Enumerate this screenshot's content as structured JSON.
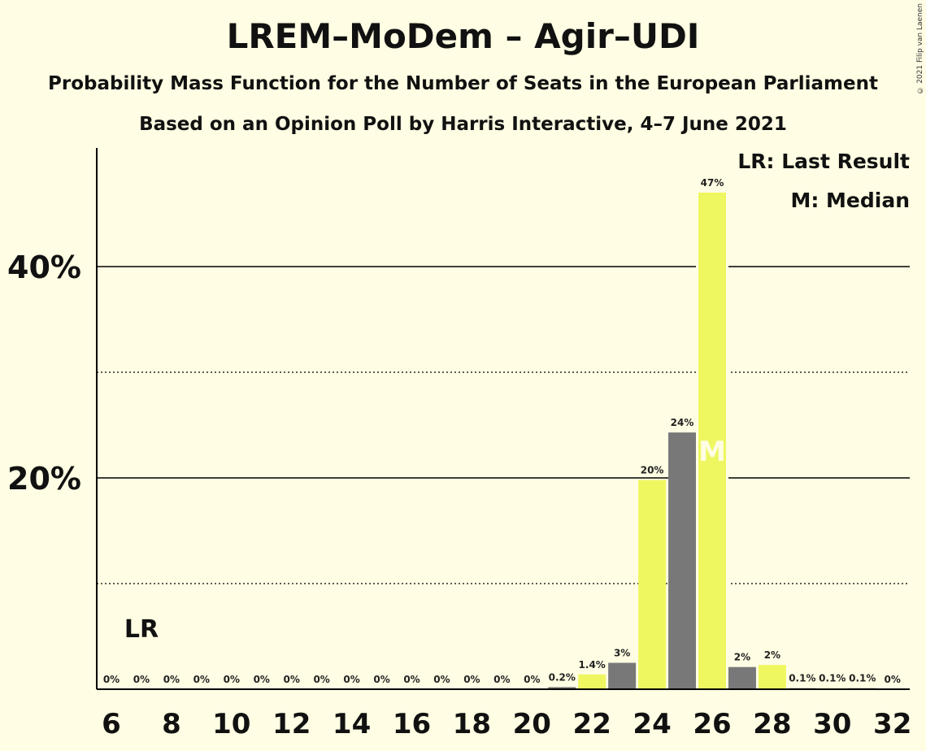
{
  "header": {
    "title": "LREM–MoDem – Agir–UDI",
    "subtitle_line1": "Probability Mass Function for the Number of Seats in the European Parliament",
    "subtitle_line2": "Based on an Opinion Poll by Harris Interactive, 4–7 June 2021",
    "copyright": "© 2021 Filip van Laenen"
  },
  "legend": {
    "last_result": "LR: Last Result",
    "median": "M: Median"
  },
  "colors": {
    "background": "#FFFDE3",
    "bar_yellow": "#EEF760",
    "bar_grey": "#787878",
    "axis": "#000000",
    "median_letter": "#FFFDE3"
  },
  "chart_data": {
    "type": "bar",
    "title": "LREM–MoDem – Agir–UDI",
    "xlabel": "",
    "ylabel": "",
    "x": [
      6,
      7,
      8,
      9,
      10,
      11,
      12,
      13,
      14,
      15,
      16,
      17,
      18,
      19,
      20,
      21,
      22,
      23,
      24,
      25,
      26,
      27,
      28,
      29,
      30,
      31,
      32
    ],
    "values": [
      0,
      0,
      0,
      0,
      0,
      0,
      0,
      0,
      0,
      0,
      0,
      0,
      0,
      0,
      0,
      0.2,
      1.4,
      2.5,
      19.8,
      24.3,
      47,
      2.1,
      2.3,
      0.1,
      0.1,
      0.1,
      0
    ],
    "labels": [
      "0%",
      "0%",
      "0%",
      "0%",
      "0%",
      "0%",
      "0%",
      "0%",
      "0%",
      "0%",
      "0%",
      "0%",
      "0%",
      "0%",
      "0%",
      "0.2%",
      "1.4%",
      "3%",
      "20%",
      "24%",
      "47%",
      "2%",
      "2%",
      "0.1%",
      "0.1%",
      "0.1%",
      "0%"
    ],
    "xticks": [
      "6",
      "8",
      "10",
      "12",
      "14",
      "16",
      "18",
      "20",
      "22",
      "24",
      "26",
      "28",
      "30",
      "32"
    ],
    "ylim": [
      0,
      50
    ],
    "yticks_labeled": [
      {
        "value": 20,
        "label": "20%"
      },
      {
        "value": 40,
        "label": "40%"
      }
    ],
    "gridlines_dotted": [
      10,
      30
    ],
    "gridlines_solid": [
      20,
      40
    ],
    "last_result_seat": 7,
    "last_result_marker": "LR",
    "median_seat": 26,
    "median_marker": "M",
    "legend_position": "top-right"
  }
}
